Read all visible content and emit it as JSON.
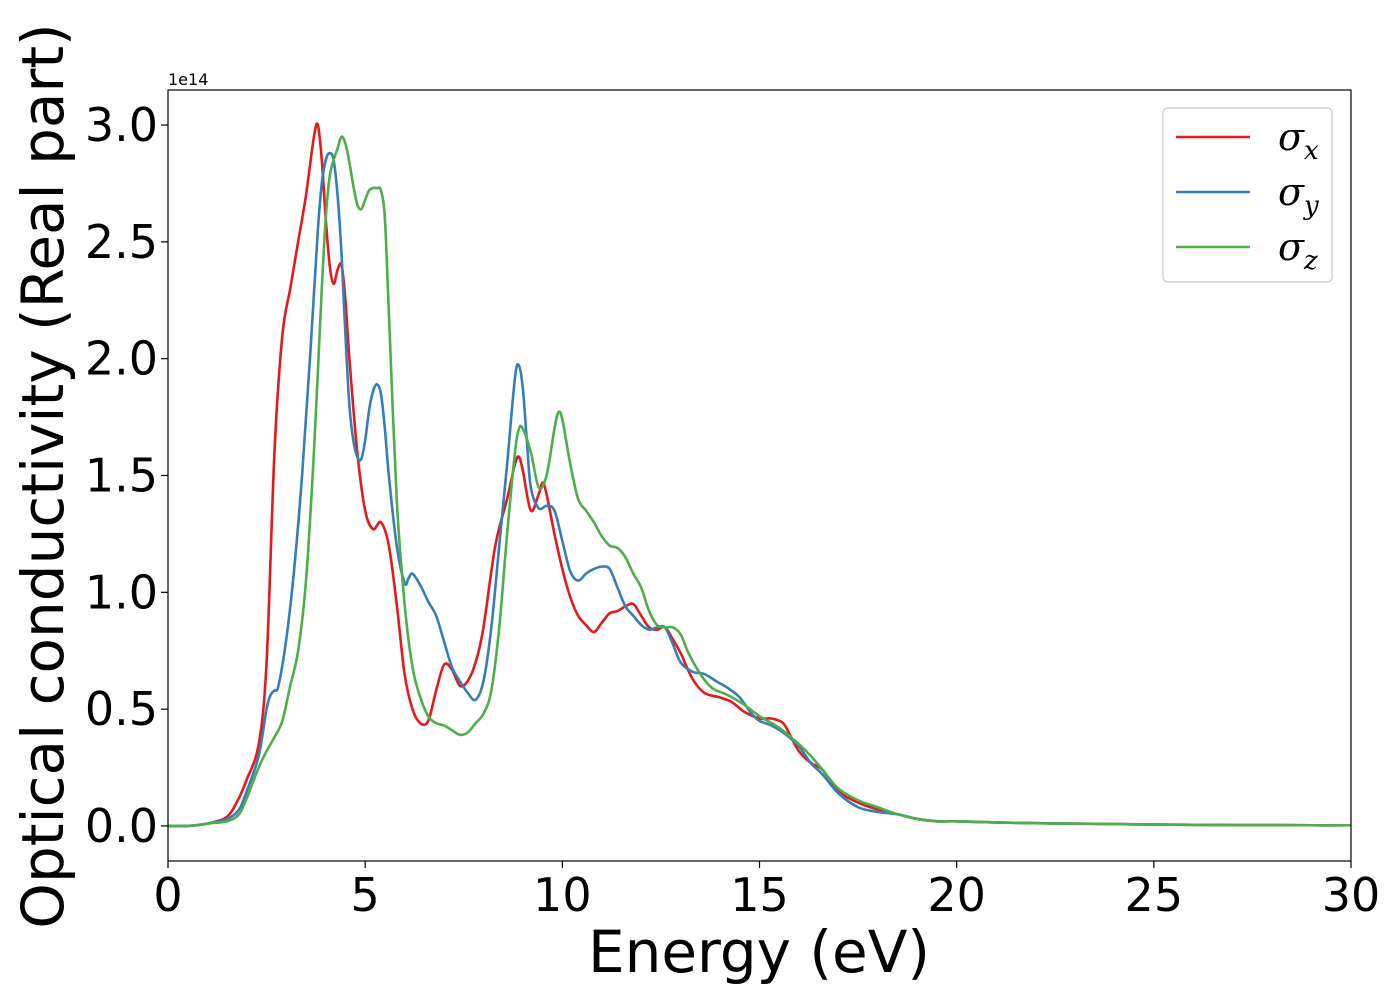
{
  "chart_data": {
    "type": "line",
    "title": "",
    "xlabel": "Energy (eV)",
    "ylabel": "Optical conductivity (Real part)",
    "y_offset_text": "1e14",
    "y_scale": 100000000000000.0,
    "xlim": [
      0,
      30
    ],
    "ylim": [
      -0.15,
      3.15
    ],
    "x_ticks": [
      0,
      5,
      10,
      15,
      20,
      25,
      30
    ],
    "x_tick_labels": [
      "0",
      "5",
      "10",
      "15",
      "20",
      "25",
      "30"
    ],
    "y_ticks": [
      0.0,
      0.5,
      1.0,
      1.5,
      2.0,
      2.5,
      3.0
    ],
    "y_tick_labels": [
      "0.0",
      "0.5",
      "1.0",
      "1.5",
      "2.0",
      "2.5",
      "3.0"
    ],
    "grid": false,
    "legend_position": "top-right",
    "series": [
      {
        "name": "σx",
        "symbol": "σ",
        "subscript": "x",
        "color": "#e41a1c",
        "x": [
          0,
          0.5,
          1.0,
          1.5,
          1.8,
          2.0,
          2.3,
          2.5,
          2.7,
          2.9,
          3.1,
          3.3,
          3.5,
          3.7,
          3.8,
          3.9,
          4.0,
          4.1,
          4.2,
          4.3,
          4.4,
          4.5,
          4.6,
          4.8,
          5.0,
          5.2,
          5.4,
          5.6,
          5.8,
          6.0,
          6.2,
          6.4,
          6.6,
          6.8,
          7.0,
          7.2,
          7.4,
          7.6,
          7.8,
          8.0,
          8.3,
          8.6,
          8.8,
          8.9,
          9.0,
          9.2,
          9.4,
          9.5,
          9.6,
          9.8,
          10.0,
          10.2,
          10.4,
          10.6,
          10.8,
          11.0,
          11.2,
          11.4,
          11.6,
          11.8,
          12.0,
          12.2,
          12.4,
          12.6,
          12.8,
          13.0,
          13.3,
          13.6,
          14.0,
          14.3,
          14.6,
          15.0,
          15.3,
          15.6,
          15.8,
          16.0,
          16.3,
          16.6,
          17.0,
          17.5,
          18.0,
          18.5,
          19.0,
          19.5,
          20,
          21,
          22,
          23,
          24,
          25,
          26,
          27,
          28,
          29,
          30
        ],
        "y": [
          0.0,
          0.0,
          0.01,
          0.04,
          0.12,
          0.2,
          0.35,
          0.7,
          1.6,
          2.1,
          2.3,
          2.5,
          2.7,
          2.95,
          3.0,
          2.85,
          2.6,
          2.4,
          2.32,
          2.38,
          2.4,
          2.25,
          2.0,
          1.6,
          1.35,
          1.27,
          1.3,
          1.2,
          0.95,
          0.65,
          0.5,
          0.44,
          0.45,
          0.58,
          0.69,
          0.67,
          0.6,
          0.62,
          0.7,
          0.85,
          1.2,
          1.4,
          1.55,
          1.58,
          1.52,
          1.35,
          1.42,
          1.47,
          1.42,
          1.25,
          1.1,
          0.98,
          0.9,
          0.86,
          0.83,
          0.87,
          0.91,
          0.92,
          0.94,
          0.95,
          0.9,
          0.85,
          0.84,
          0.85,
          0.8,
          0.74,
          0.63,
          0.57,
          0.55,
          0.53,
          0.49,
          0.46,
          0.46,
          0.44,
          0.38,
          0.32,
          0.27,
          0.24,
          0.15,
          0.1,
          0.07,
          0.05,
          0.03,
          0.02,
          0.02,
          0.015,
          0.012,
          0.01,
          0.008,
          0.006,
          0.005,
          0.004,
          0.004,
          0.003,
          0.003
        ]
      },
      {
        "name": "σy",
        "symbol": "σ",
        "subscript": "y",
        "color": "#377eb8",
        "x": [
          0,
          0.5,
          1.0,
          1.5,
          1.8,
          2.0,
          2.3,
          2.5,
          2.6,
          2.7,
          2.8,
          3.0,
          3.2,
          3.4,
          3.6,
          3.8,
          3.9,
          4.0,
          4.1,
          4.2,
          4.3,
          4.4,
          4.5,
          4.6,
          4.7,
          4.8,
          4.9,
          5.0,
          5.1,
          5.2,
          5.3,
          5.4,
          5.5,
          5.6,
          5.8,
          6.0,
          6.1,
          6.2,
          6.4,
          6.6,
          6.8,
          7.0,
          7.2,
          7.4,
          7.6,
          7.8,
          8.0,
          8.2,
          8.4,
          8.6,
          8.8,
          8.9,
          9.0,
          9.1,
          9.2,
          9.4,
          9.6,
          9.8,
          10.0,
          10.2,
          10.4,
          10.6,
          10.8,
          11.0,
          11.2,
          11.4,
          11.6,
          11.8,
          12.0,
          12.2,
          12.4,
          12.6,
          12.8,
          13.0,
          13.3,
          13.6,
          13.9,
          14.2,
          14.5,
          14.8,
          15.0,
          15.3,
          15.6,
          16.0,
          16.3,
          16.6,
          17.0,
          17.5,
          18.0,
          18.5,
          19.0,
          19.5,
          20,
          21,
          22,
          23,
          24,
          25,
          26,
          27,
          28,
          29,
          30
        ],
        "y": [
          0.0,
          0.0,
          0.01,
          0.03,
          0.07,
          0.15,
          0.3,
          0.5,
          0.56,
          0.58,
          0.6,
          0.8,
          1.1,
          1.5,
          2.0,
          2.55,
          2.75,
          2.85,
          2.88,
          2.85,
          2.7,
          2.45,
          2.1,
          1.8,
          1.65,
          1.58,
          1.57,
          1.65,
          1.78,
          1.86,
          1.89,
          1.85,
          1.7,
          1.5,
          1.2,
          1.04,
          1.06,
          1.08,
          1.03,
          0.96,
          0.9,
          0.79,
          0.68,
          0.62,
          0.57,
          0.54,
          0.62,
          0.85,
          1.2,
          1.55,
          1.92,
          1.97,
          1.87,
          1.65,
          1.45,
          1.36,
          1.37,
          1.35,
          1.22,
          1.09,
          1.05,
          1.08,
          1.1,
          1.11,
          1.1,
          1.02,
          0.94,
          0.9,
          0.86,
          0.84,
          0.85,
          0.85,
          0.78,
          0.7,
          0.66,
          0.65,
          0.62,
          0.59,
          0.55,
          0.48,
          0.45,
          0.43,
          0.4,
          0.34,
          0.27,
          0.22,
          0.14,
          0.08,
          0.06,
          0.05,
          0.03,
          0.02,
          0.02,
          0.015,
          0.012,
          0.01,
          0.008,
          0.006,
          0.005,
          0.004,
          0.004,
          0.003,
          0.003
        ]
      },
      {
        "name": "σz",
        "symbol": "σ",
        "subscript": "z",
        "color": "#4daf4a",
        "x": [
          0,
          0.5,
          1.0,
          1.5,
          1.8,
          2.0,
          2.3,
          2.5,
          2.7,
          2.9,
          3.1,
          3.3,
          3.5,
          3.7,
          3.9,
          4.0,
          4.1,
          4.2,
          4.3,
          4.4,
          4.5,
          4.6,
          4.7,
          4.8,
          4.9,
          5.0,
          5.1,
          5.2,
          5.3,
          5.4,
          5.5,
          5.6,
          5.8,
          6.0,
          6.2,
          6.4,
          6.6,
          6.8,
          7.0,
          7.2,
          7.4,
          7.6,
          7.8,
          8.0,
          8.2,
          8.4,
          8.6,
          8.8,
          8.9,
          9.0,
          9.2,
          9.4,
          9.6,
          9.8,
          9.9,
          10.0,
          10.2,
          10.4,
          10.6,
          10.8,
          11.0,
          11.2,
          11.4,
          11.6,
          11.8,
          12.0,
          12.2,
          12.4,
          12.6,
          12.8,
          13.0,
          13.2,
          13.5,
          13.8,
          14.2,
          14.6,
          15.0,
          15.5,
          16.0,
          16.3,
          16.6,
          17.0,
          17.5,
          18.0,
          18.5,
          19.0,
          19.5,
          20,
          21,
          22,
          23,
          24,
          25,
          26,
          27,
          28,
          29,
          30
        ],
        "y": [
          0.0,
          0.0,
          0.01,
          0.02,
          0.05,
          0.12,
          0.25,
          0.32,
          0.38,
          0.45,
          0.6,
          0.75,
          1.05,
          1.6,
          2.3,
          2.6,
          2.78,
          2.85,
          2.9,
          2.95,
          2.92,
          2.84,
          2.74,
          2.66,
          2.64,
          2.68,
          2.72,
          2.73,
          2.73,
          2.72,
          2.6,
          2.2,
          1.4,
          0.95,
          0.68,
          0.55,
          0.47,
          0.44,
          0.43,
          0.41,
          0.39,
          0.4,
          0.44,
          0.48,
          0.58,
          0.85,
          1.25,
          1.6,
          1.7,
          1.7,
          1.6,
          1.45,
          1.5,
          1.7,
          1.77,
          1.74,
          1.55,
          1.4,
          1.35,
          1.3,
          1.24,
          1.2,
          1.19,
          1.15,
          1.08,
          1.02,
          0.92,
          0.86,
          0.85,
          0.85,
          0.82,
          0.74,
          0.65,
          0.59,
          0.56,
          0.52,
          0.47,
          0.42,
          0.35,
          0.3,
          0.24,
          0.16,
          0.11,
          0.08,
          0.05,
          0.03,
          0.02,
          0.02,
          0.015,
          0.012,
          0.01,
          0.008,
          0.006,
          0.005,
          0.004,
          0.004,
          0.003,
          0.003
        ]
      }
    ]
  }
}
